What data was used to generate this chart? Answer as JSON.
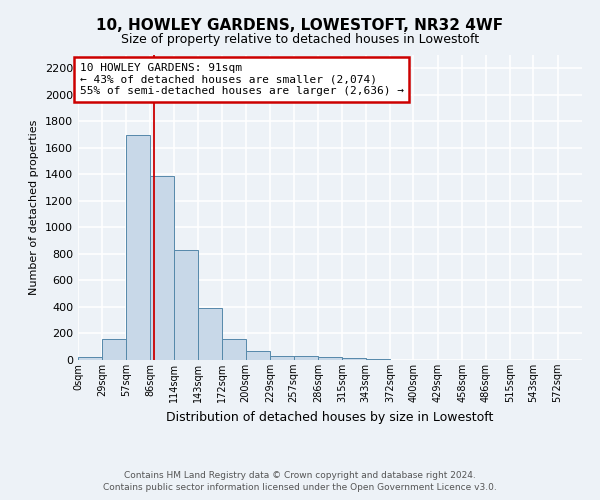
{
  "title": "10, HOWLEY GARDENS, LOWESTOFT, NR32 4WF",
  "subtitle": "Size of property relative to detached houses in Lowestoft",
  "xlabel": "Distribution of detached houses by size in Lowestoft",
  "ylabel": "Number of detached properties",
  "bin_edges": [
    0,
    29,
    57,
    86,
    114,
    143,
    172,
    200,
    229,
    257,
    286,
    315,
    343,
    372,
    400,
    429,
    458,
    486,
    515,
    543,
    572,
    601
  ],
  "bar_heights": [
    20,
    155,
    1700,
    1390,
    830,
    390,
    160,
    65,
    30,
    30,
    25,
    15,
    10,
    0,
    0,
    0,
    0,
    0,
    0,
    0,
    0
  ],
  "bar_color": "#c8d8e8",
  "bar_edgecolor": "#5588aa",
  "property_size": 91,
  "vline_color": "#cc0000",
  "annotation_line1": "10 HOWLEY GARDENS: 91sqm",
  "annotation_line2": "← 43% of detached houses are smaller (2,074)",
  "annotation_line3": "55% of semi-detached houses are larger (2,636) →",
  "annotation_box_color": "white",
  "annotation_box_edgecolor": "#cc0000",
  "ylim": [
    0,
    2300
  ],
  "yticks": [
    0,
    200,
    400,
    600,
    800,
    1000,
    1200,
    1400,
    1600,
    1800,
    2000,
    2200
  ],
  "tick_labels": [
    "0sqm",
    "29sqm",
    "57sqm",
    "86sqm",
    "114sqm",
    "143sqm",
    "172sqm",
    "200sqm",
    "229sqm",
    "257sqm",
    "286sqm",
    "315sqm",
    "343sqm",
    "372sqm",
    "400sqm",
    "429sqm",
    "458sqm",
    "486sqm",
    "515sqm",
    "543sqm",
    "572sqm"
  ],
  "footer_line1": "Contains HM Land Registry data © Crown copyright and database right 2024.",
  "footer_line2": "Contains public sector information licensed under the Open Government Licence v3.0.",
  "bg_color": "#edf2f7",
  "grid_color": "white",
  "plot_bg_color": "#edf2f7"
}
